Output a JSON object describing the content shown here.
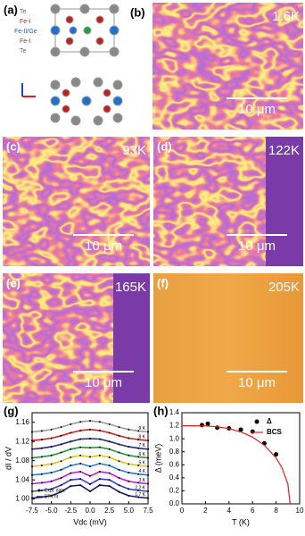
{
  "panels": [
    {
      "label": "(a)",
      "atoms": [
        "Te",
        "Fe-I",
        "Fe-II/Ge",
        "Fe-I",
        "Te"
      ]
    },
    {
      "label": "(b)",
      "temperature": "1.6K",
      "scale_bar": "10 μm"
    },
    {
      "label": "(c)",
      "temperature": "93K",
      "scale_bar": "10 μm"
    },
    {
      "label": "(d)",
      "temperature": "122K",
      "scale_bar": "10 μm"
    },
    {
      "label": "(e)",
      "temperature": "165K",
      "scale_bar": "10 μm"
    },
    {
      "label": "(f)",
      "temperature": "205K",
      "scale_bar": "10 μm"
    }
  ],
  "chart_data": [
    {
      "type": "line",
      "panel_label": "(g)",
      "y_label": "dI / dV",
      "x_label": "Vdc (mV)",
      "x": [
        -7.5,
        -6.25,
        -5,
        -3.75,
        -2.5,
        -1.25,
        0,
        1.25,
        2.5,
        3.75,
        5,
        6.25,
        7.5
      ],
      "xlim": [
        -7.5,
        7.5
      ],
      "xticks": [
        -7.5,
        {
          "value": -5,
          "label": "-5.0"
        },
        -2.5,
        {
          "value": 0,
          "label": "0.0"
        },
        2.5,
        {
          "value": 5,
          "label": "5.0"
        },
        7.5
      ],
      "ylim": [
        0.99,
        1.18
      ],
      "yticks": [
        {
          "value": 1,
          "label": "1.00"
        },
        1.04,
        1.08,
        1.12,
        1.16
      ],
      "legend_labels": [
        "Expt. data",
        "BTK fit"
      ],
      "series": [
        {
          "name": "9 K",
          "color": "#9a9a9a",
          "values": [
            1.14,
            1.142,
            1.145,
            1.15,
            1.156,
            1.161,
            1.163,
            1.161,
            1.156,
            1.15,
            1.145,
            1.142,
            1.14
          ]
        },
        {
          "name": "8 K",
          "color": "#d62020",
          "values": [
            1.122,
            1.124,
            1.127,
            1.132,
            1.138,
            1.143,
            1.145,
            1.143,
            1.138,
            1.132,
            1.127,
            1.124,
            1.122
          ]
        },
        {
          "name": "7 K",
          "color": "#2a2a8a",
          "values": [
            1.104,
            1.106,
            1.109,
            1.114,
            1.12,
            1.125,
            1.126,
            1.125,
            1.12,
            1.114,
            1.109,
            1.106,
            1.104
          ]
        },
        {
          "name": "6 K",
          "color": "#1e9a3a",
          "values": [
            1.086,
            1.088,
            1.091,
            1.097,
            1.104,
            1.108,
            1.107,
            1.108,
            1.104,
            1.097,
            1.091,
            1.088,
            1.086
          ]
        },
        {
          "name": "5 K",
          "color": "#d8c81e",
          "values": [
            1.068,
            1.07,
            1.073,
            1.079,
            1.087,
            1.091,
            1.088,
            1.091,
            1.087,
            1.079,
            1.073,
            1.07,
            1.068
          ]
        },
        {
          "name": "4 K",
          "color": "#2a7ad8",
          "values": [
            1.05,
            1.052,
            1.055,
            1.061,
            1.07,
            1.074,
            1.068,
            1.074,
            1.07,
            1.061,
            1.055,
            1.052,
            1.05
          ]
        },
        {
          "name": "3 K",
          "color": "#c81ec8",
          "values": [
            1.032,
            1.034,
            1.037,
            1.044,
            1.054,
            1.057,
            1.048,
            1.057,
            1.054,
            1.044,
            1.037,
            1.034,
            1.032
          ]
        },
        {
          "name": "2.2 K",
          "color": "#3a3ad8",
          "values": [
            1.016,
            1.018,
            1.021,
            1.029,
            1.04,
            1.042,
            1.031,
            1.042,
            1.04,
            1.029,
            1.021,
            1.018,
            1.016
          ]
        },
        {
          "name": "1.7 K",
          "color": "#1a1a6a",
          "values": [
            1.002,
            1.004,
            1.007,
            1.015,
            1.027,
            1.029,
            1.016,
            1.029,
            1.027,
            1.015,
            1.007,
            1.004,
            1.002
          ]
        }
      ]
    },
    {
      "type": "scatter",
      "panel_label": "(h)",
      "y_label": "Δ (meV)",
      "x_label": "T (K)",
      "xlim": [
        0,
        10
      ],
      "xticks": [
        0,
        2,
        4,
        6,
        8,
        10
      ],
      "ylim": [
        0,
        1.4
      ],
      "yticks": [
        {
          "value": 0,
          "label": "0.0"
        },
        0.2,
        0.4,
        0.6,
        0.8,
        {
          "value": 1,
          "label": "1.0"
        },
        1.2,
        1.4
      ],
      "legend": "upper right",
      "series": [
        {
          "name": "Δ",
          "color": "#000000",
          "marker": "dot",
          "x": [
            1.7,
            2.2,
            3,
            4,
            5,
            6,
            7,
            8
          ],
          "values": [
            1.21,
            1.23,
            1.17,
            1.16,
            1.14,
            1.11,
            0.93,
            0.76
          ]
        },
        {
          "name": "BCS",
          "color": "#e02020",
          "marker": "line",
          "x": [
            0,
            1,
            2,
            3,
            4,
            5,
            6,
            7,
            8,
            8.5,
            9,
            9.2
          ],
          "values": [
            1.2,
            1.2,
            1.197,
            1.184,
            1.156,
            1.105,
            1.025,
            0.901,
            0.705,
            0.554,
            0.304,
            0
          ]
        }
      ]
    }
  ]
}
